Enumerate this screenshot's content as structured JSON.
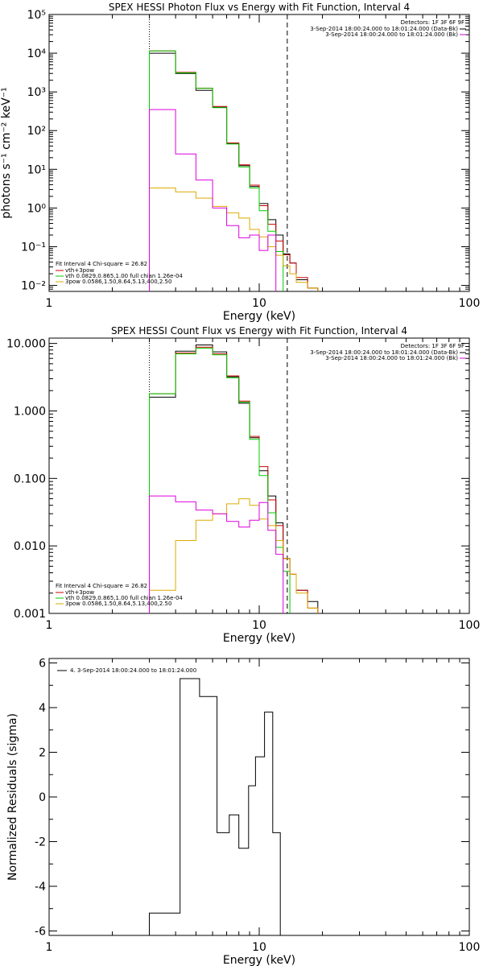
{
  "colors": {
    "data": "#000000",
    "bk": "#cc0000",
    "total": "#dd00dd",
    "vth": "#00cc00",
    "pow": "#ddaa00"
  },
  "chart_data": [
    {
      "type": "line",
      "title": "SPEX HESSI Photon Flux vs Energy with Fit Function, Interval 4",
      "xlabel": "Energy (keV)",
      "ylabel": "photons s⁻¹ cm⁻² keV⁻¹",
      "xscale": "log",
      "yscale": "log",
      "xlim": [
        1,
        100
      ],
      "ylim": [
        0.007,
        100000
      ],
      "x_ticks": [
        1,
        10,
        100
      ],
      "x_tick_labels": [
        "1",
        "10",
        "100"
      ],
      "y_ticks": [
        0.01,
        0.1,
        1,
        10,
        100,
        1000,
        10000,
        100000
      ],
      "y_tick_labels": [
        "10⁻²",
        "10⁻¹",
        "10⁰",
        "10¹",
        "10²",
        "10³",
        "10⁴",
        "10⁵"
      ],
      "vlines": [
        {
          "x": 3.0,
          "style": "dotted"
        },
        {
          "x": 13.6,
          "style": "dashed"
        }
      ],
      "legend_top": {
        "title": "Detectors: 1F 3F 6F 9F",
        "entries": [
          {
            "text": "3-Sep-2014 18:00:24.000 to 18:01:24.000 (Data-Bk)",
            "color": "#000000"
          },
          {
            "text": "3-Sep-2014 18:00:24.000 to 18:01:24.000 (Bk)",
            "color": "#dd00dd"
          }
        ]
      },
      "legend_fit": {
        "title": "Fit Interval  4   Chi-square = 26.82",
        "entries": [
          {
            "text": "vth+3pow",
            "color": "#cc0000"
          },
          {
            "text": "vth 0.0829,0.865,1.00  full chian 1.26e-04",
            "color": "#00cc00"
          },
          {
            "text": "3pow 0.0586,1.50,8.64,5.13,400,2.50",
            "color": "#ddaa00"
          }
        ]
      },
      "edges": [
        3.0,
        4.0,
        5.0,
        6.0,
        7.0,
        8.0,
        9.0,
        10.0,
        11.0,
        12.0,
        13.0,
        14.0,
        15.0,
        17.0,
        19.0,
        21.0
      ],
      "series": [
        {
          "name": "",
          "role": "data",
          "color": "#000000",
          "width": 1,
          "values": [
            10000,
            3000,
            1100,
            400,
            47,
            12.5,
            3.6,
            1.3,
            0.5,
            0.2,
            0.065,
            0.038,
            0.014,
            0.0085,
            null
          ]
        },
        {
          "name": "vth+3pow",
          "role": "fit",
          "color": "#cc0000",
          "width": 1,
          "values": [
            11500,
            3200,
            1250,
            420,
            48,
            13,
            3.9,
            1.15,
            0.38,
            0.14,
            0.062,
            0.038,
            0.016,
            0.0085,
            null
          ]
        },
        {
          "name": "vth",
          "role": "vth",
          "color": "#00cc00",
          "width": 1,
          "values": [
            11500,
            3100,
            1230,
            390,
            45,
            11.5,
            3.3,
            0.85,
            0.25,
            0.075,
            null,
            null,
            null,
            null,
            null
          ]
        },
        {
          "name": "3pow",
          "role": "pow",
          "color": "#ddaa00",
          "width": 1,
          "values": [
            3.3,
            2.6,
            1.8,
            1.1,
            0.75,
            0.55,
            0.28,
            0.18,
            0.1,
            0.06,
            0.032,
            0.02,
            0.012,
            0.0085,
            null
          ]
        },
        {
          "name": "",
          "role": "bk",
          "color": "#dd00dd",
          "width": 1,
          "values": [
            350,
            25,
            5.3,
            1.0,
            0.35,
            0.17,
            0.2,
            0.08,
            0.2,
            null,
            null,
            null,
            null,
            null,
            null
          ]
        }
      ]
    },
    {
      "type": "line",
      "title": "SPEX HESSI Count Flux vs Energy with Fit Function, Interval 4",
      "xlabel": "Energy (keV)",
      "ylabel": "",
      "xscale": "log",
      "yscale": "log",
      "xlim": [
        1,
        100
      ],
      "ylim": [
        0.001,
        12
      ],
      "x_ticks": [
        1,
        10,
        100
      ],
      "x_tick_labels": [
        "1",
        "10",
        "100"
      ],
      "y_ticks": [
        0.001,
        0.01,
        0.1,
        1,
        10
      ],
      "y_tick_labels": [
        "0.001",
        "0.010",
        "0.100",
        "1.000",
        "10.000"
      ],
      "vlines": [
        {
          "x": 3.0,
          "style": "dotted"
        },
        {
          "x": 13.6,
          "style": "dashed"
        }
      ],
      "legend_top": {
        "title": "Detectors: 1F 3F 6F 9F",
        "entries": [
          {
            "text": "3-Sep-2014 18:00:24.000 to 18:01:24.000 (Data-Bk)",
            "color": "#000000"
          },
          {
            "text": "3-Sep-2014 18:00:24.000 to 18:01:24.000 (Bk)",
            "color": "#dd00dd"
          }
        ]
      },
      "legend_fit": {
        "title": "Fit Interval  4   Chi-square = 26.82",
        "entries": [
          {
            "text": "vth+3pow",
            "color": "#cc0000"
          },
          {
            "text": "vth 0.0829,0.865,1.00  full chian 1.26e-04",
            "color": "#00cc00"
          },
          {
            "text": "3pow 0.0586,1.50,8.64,5.13,400,2.50",
            "color": "#ddaa00"
          }
        ]
      },
      "edges": [
        3.0,
        4.0,
        5.0,
        6.0,
        7.0,
        8.0,
        9.0,
        10.0,
        11.0,
        12.0,
        13.0,
        14.0,
        15.0,
        17.0,
        19.0,
        21.0
      ],
      "series": [
        {
          "name": "",
          "role": "data",
          "color": "#000000",
          "width": 1,
          "values": [
            1.6,
            7.7,
            9.5,
            7.5,
            3.2,
            1.3,
            0.4,
            0.13,
            0.055,
            0.022,
            0.0065,
            0.0038,
            0.0022,
            0.0015,
            null
          ]
        },
        {
          "name": "vth+3pow",
          "role": "fit",
          "color": "#cc0000",
          "width": 1,
          "values": [
            1.8,
            7.2,
            8.8,
            7.0,
            3.3,
            1.4,
            0.42,
            0.15,
            0.048,
            0.02,
            0.0065,
            0.0038,
            0.0022,
            0.0012,
            null
          ]
        },
        {
          "name": "vth",
          "role": "vth",
          "color": "#00cc00",
          "width": 1,
          "values": [
            1.8,
            7.0,
            8.5,
            6.8,
            3.1,
            1.35,
            0.38,
            0.11,
            0.031,
            0.0095,
            0.0042,
            null,
            null,
            null,
            null
          ]
        },
        {
          "name": "3pow",
          "role": "pow",
          "color": "#ddaa00",
          "width": 1,
          "values": [
            0.0022,
            0.012,
            0.024,
            0.03,
            0.042,
            0.05,
            0.04,
            0.025,
            0.02,
            0.012,
            0.0065,
            0.0038,
            0.002,
            0.0012,
            null
          ]
        },
        {
          "name": "",
          "role": "bk",
          "color": "#dd00dd",
          "width": 1,
          "values": [
            0.055,
            0.045,
            0.034,
            0.03,
            0.023,
            0.019,
            0.024,
            0.044,
            0.017,
            0.0075,
            null,
            null,
            null,
            null,
            null
          ]
        }
      ]
    },
    {
      "type": "line",
      "title": "",
      "xlabel": "Energy (keV)",
      "ylabel": "Normalized Residuals (sigma)",
      "xscale": "log",
      "yscale": "linear",
      "xlim": [
        1,
        100
      ],
      "ylim": [
        -6.2,
        6.2
      ],
      "x_ticks": [
        1,
        10,
        100
      ],
      "x_tick_labels": [
        "1",
        "10",
        "100"
      ],
      "y_ticks": [
        -6,
        -4,
        -2,
        0,
        2,
        4,
        6
      ],
      "y_tick_labels": [
        "-6",
        "-4",
        "-2",
        "0",
        "2",
        "4",
        "6"
      ],
      "legend": "4.  3-Sep-2014 18:00:24.000 to 18:01:24.000",
      "edges": [
        3.0,
        4.2,
        5.2,
        6.3,
        7.2,
        8.0,
        8.9,
        9.6,
        10.6,
        11.6,
        12.6,
        13.6
      ],
      "series": [
        {
          "name": "",
          "color": "#000000",
          "width": 1,
          "values": [
            -5.2,
            5.3,
            4.5,
            -1.6,
            -0.8,
            -2.3,
            0.5,
            1.8,
            3.8,
            -1.6,
            -6.3
          ]
        }
      ]
    }
  ]
}
